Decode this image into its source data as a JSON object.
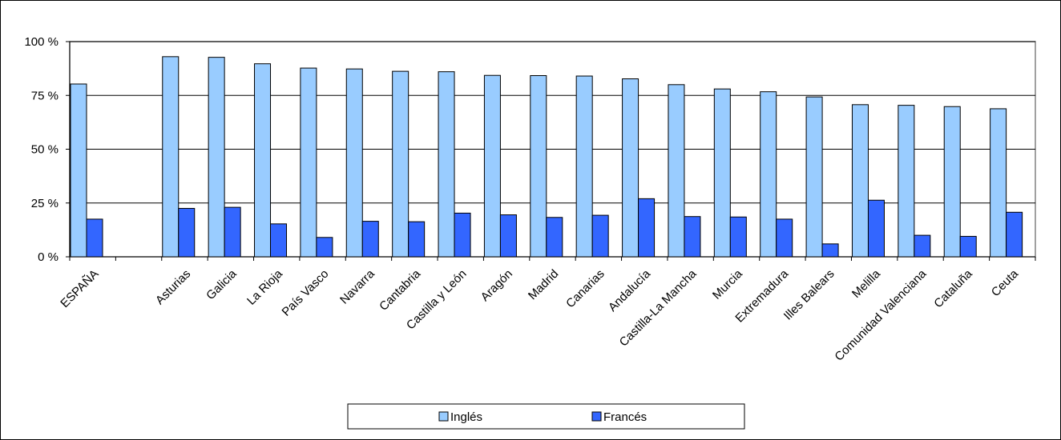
{
  "chart_data": {
    "type": "bar",
    "categories": [
      "ESPAÑA",
      "",
      "Asturias",
      "Galicia",
      "La Rioja",
      "País Vasco",
      "Navarra",
      "Cantabria",
      "Castilla y León",
      "Aragón",
      "Madrid",
      "Canarias",
      "Andalucía",
      "Castilla-La Mancha",
      "Murcia",
      "Extremadura",
      "Illes Balears",
      "Melilla",
      "Comunidad Valenciana",
      "Cataluña",
      "Ceuta"
    ],
    "series": [
      {
        "name": "Inglés",
        "color": "#99ccff",
        "values": [
          80.3,
          null,
          93.0,
          92.7,
          89.7,
          87.7,
          87.3,
          86.2,
          86.0,
          84.3,
          84.2,
          84.0,
          82.7,
          80.0,
          78.0,
          76.7,
          74.3,
          70.7,
          70.4,
          69.8,
          68.8
        ]
      },
      {
        "name": "Francés",
        "color": "#3366ff",
        "values": [
          17.5,
          null,
          22.5,
          23.0,
          15.3,
          9.0,
          16.5,
          16.3,
          20.3,
          19.5,
          18.3,
          19.3,
          27.0,
          18.7,
          18.5,
          17.5,
          6.0,
          26.3,
          10.0,
          9.5,
          20.7
        ]
      }
    ],
    "ylim": [
      0,
      100
    ],
    "yticks": [
      0,
      25,
      50,
      75,
      100
    ],
    "ytick_labels": [
      "0 %",
      "25 %",
      "50 %",
      "75 %",
      "100 %"
    ],
    "grid": true,
    "legend_position": "bottom"
  }
}
